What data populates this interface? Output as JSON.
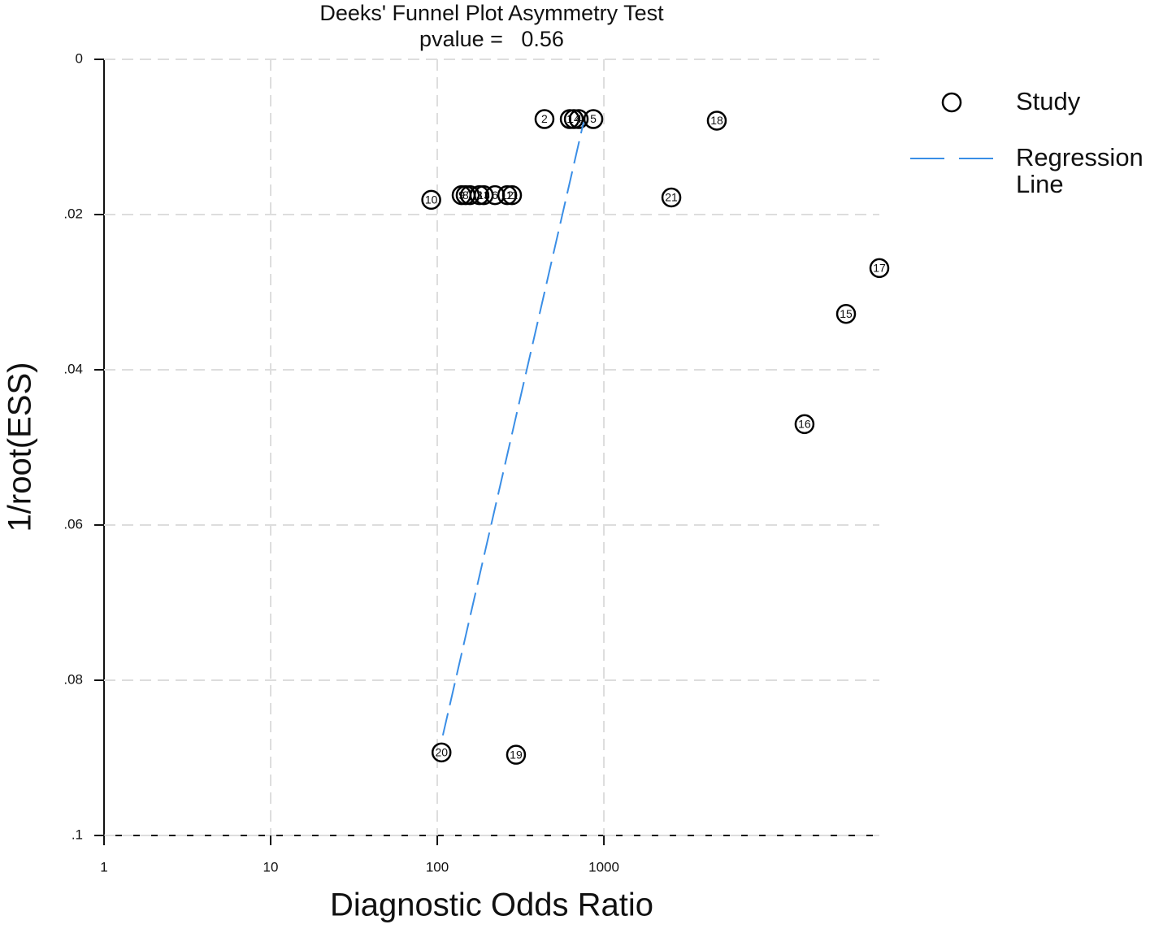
{
  "chart_data": {
    "type": "scatter",
    "title": "Deeks' Funnel Plot Asymmetry Test",
    "subtitle": "pvalue =   0.56",
    "xlabel": "Diagnostic Odds Ratio",
    "ylabel": "1/root(ESS)",
    "xscale": "log",
    "y_inverted": true,
    "grid": true,
    "legend_position": "right",
    "xlim": [
      1,
      45000
    ],
    "xticks": [
      1,
      10,
      100,
      1000
    ],
    "ylim": [
      0,
      0.1
    ],
    "yticks": [
      0,
      {
        "value": 0.02,
        "label": ".02"
      },
      {
        "value": 0.04,
        "label": ".04"
      },
      {
        "value": 0.06,
        "label": ".06"
      },
      {
        "value": 0.08,
        "label": ".08"
      },
      {
        "value": 0.1,
        "label": ".1"
      }
    ],
    "series": [
      {
        "name": "Study",
        "type": "scatter",
        "color": "#000000",
        "labels": [
          "2",
          "1",
          "14",
          "4",
          "5",
          "18",
          "10",
          "9",
          "8",
          "7",
          "3",
          "13",
          "6",
          "12",
          "11",
          "21",
          "17",
          "15",
          "16",
          "20",
          "19"
        ],
        "x": [
          440,
          624,
          660,
          706,
          864,
          4760,
          92,
          140,
          148,
          157,
          179,
          190,
          222,
          263,
          281,
          2540,
          45000,
          28400,
          16000,
          106,
          297
        ],
        "values": [
          0.0077,
          0.0077,
          0.0077,
          0.0077,
          0.0077,
          0.0079,
          0.0181,
          0.0175,
          0.0175,
          0.0175,
          0.0175,
          0.0175,
          0.0175,
          0.0175,
          0.0175,
          0.0178,
          0.0269,
          0.0328,
          0.047,
          0.0893,
          0.0896
        ]
      },
      {
        "name": "Regression Line",
        "type": "line",
        "dashed": true,
        "color": "#3a8ee6",
        "x": [
          108,
          755
        ],
        "values": [
          0.0871,
          0.0081
        ]
      }
    ]
  }
}
